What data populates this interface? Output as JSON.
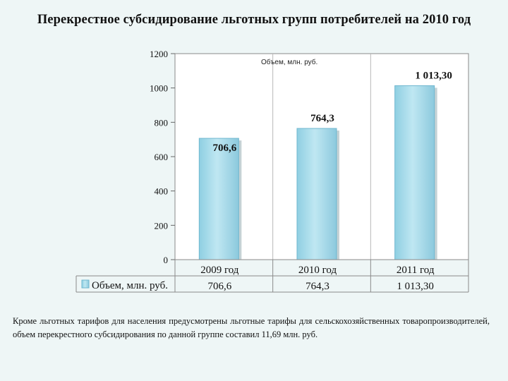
{
  "page": {
    "title": "Перекрестное субсидирование льготных групп потребителей на 2010 год",
    "note": "Кроме льготных тарифов для населения предусмотрены льготные тарифы для сельскохозяйственных товаропроизводителей, объем перекрестного субсидирования по данной группе составил 11,69 млн. руб."
  },
  "chart_data": {
    "type": "bar",
    "categories": [
      "2009 год",
      "2010 год",
      "2011 год"
    ],
    "series": [
      {
        "name": "Объем, млн. руб.",
        "values": [
          706.6,
          764.3,
          1013.3
        ],
        "labels": [
          "706,6",
          "764,3",
          "1 013,30"
        ]
      }
    ],
    "ylim": [
      0,
      1200
    ],
    "yticks": [
      "0",
      "200",
      "400",
      "600",
      "800",
      "1000",
      "1200"
    ],
    "legend_title": "Объем, млн. руб.",
    "legend_entry": "Объем, млн. руб.",
    "table_values": [
      "706,6",
      "764,3",
      "1 013,30"
    ],
    "colors": {
      "bar": "#a8dcea",
      "bar_edge": "#6fb7cf",
      "grid": "#9a9a9a",
      "plot_bg": "#ffffff"
    }
  }
}
